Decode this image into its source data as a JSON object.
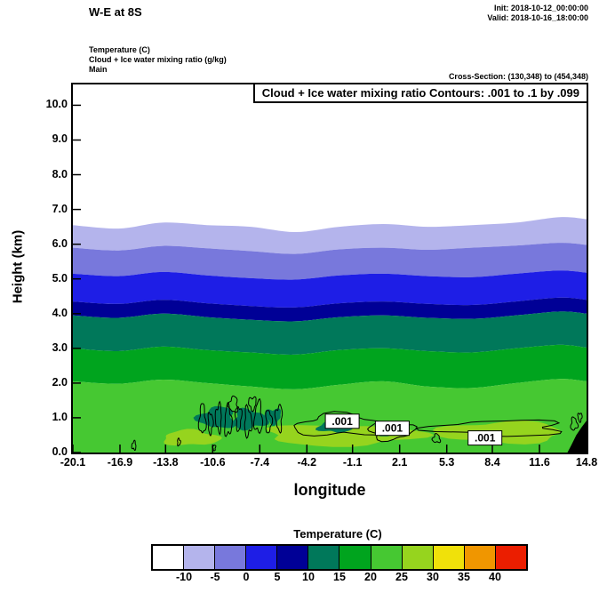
{
  "header": {
    "title": "W-E at 8S",
    "init": "Init: 2018-10-12_00:00:00",
    "valid": "Valid: 2018-10-16_18:00:00",
    "fields": [
      "Temperature (C)",
      "Cloud + Ice water mixing ratio (g/kg)",
      "Main"
    ],
    "cross_section": "Cross-Section: (130,348) to (454,348)"
  },
  "plot": {
    "contour_note": "Cloud + Ice water mixing ratio Contours: .001 to .1 by .099",
    "xlabel": "longitude",
    "ylabel": "Height (km)"
  },
  "colorbar": {
    "title": "Temperature (C)",
    "colors": [
      "#ffffff",
      "#b4b4ec",
      "#7878dc",
      "#1e1ee6",
      "#000096",
      "#00785a",
      "#00a41e",
      "#46c832",
      "#96d41e",
      "#f0e10a",
      "#f09600",
      "#eb1e00"
    ],
    "labels": [
      "-10",
      "-5",
      "0",
      "5",
      "10",
      "15",
      "20",
      "25",
      "30",
      "35",
      "40"
    ]
  },
  "chart_data": {
    "type": "filled-contour-cross-section",
    "title": "W-E at 8S",
    "fill_field": "Temperature (C)",
    "line_field": "Cloud + Ice water mixing ratio (g/kg)",
    "line_contour_levels_gkg": [
      0.001,
      0.1
    ],
    "xlabel": "longitude",
    "ylabel": "Height (km)",
    "xlim": [
      -20.1,
      14.8
    ],
    "ylim": [
      0,
      10.6
    ],
    "x_ticks": [
      "-20.1",
      "-16.9",
      "-13.8",
      "-10.6",
      "-7.4",
      "-4.2",
      "-1.1",
      "2.1",
      "5.3",
      "8.4",
      "11.6",
      "14.8"
    ],
    "y_ticks": [
      "0.0",
      "1.0",
      "2.0",
      "3.0",
      "4.0",
      "5.0",
      "6.0",
      "7.0",
      "8.0",
      "9.0",
      "10.0"
    ],
    "x_samples": [
      -20.1,
      -17,
      -14,
      -11,
      -8,
      -5,
      -2,
      1,
      4,
      7,
      10,
      13,
      14.8
    ],
    "temp_boundaries": [
      {
        "level_c": -10,
        "heights_km": [
          6.55,
          6.45,
          6.62,
          6.55,
          6.5,
          6.35,
          6.5,
          6.58,
          6.5,
          6.55,
          6.62,
          6.78,
          6.72
        ]
      },
      {
        "level_c": -5,
        "heights_km": [
          5.9,
          5.82,
          5.95,
          5.88,
          5.8,
          5.72,
          5.85,
          5.9,
          5.84,
          5.9,
          5.96,
          6.04,
          5.98
        ]
      },
      {
        "level_c": 0,
        "heights_km": [
          5.15,
          5.08,
          5.2,
          5.1,
          5.02,
          4.98,
          5.1,
          5.15,
          5.08,
          5.05,
          5.15,
          5.24,
          5.18
        ]
      },
      {
        "level_c": 5,
        "heights_km": [
          4.35,
          4.28,
          4.4,
          4.3,
          4.22,
          4.18,
          4.3,
          4.35,
          4.28,
          4.25,
          4.35,
          4.46,
          4.4
        ]
      },
      {
        "level_c": 10,
        "heights_km": [
          3.95,
          3.88,
          4.0,
          3.9,
          3.82,
          3.78,
          3.9,
          3.95,
          3.88,
          3.85,
          3.95,
          4.06,
          4.0
        ]
      },
      {
        "level_c": 15,
        "heights_km": [
          3.0,
          2.92,
          3.05,
          2.95,
          2.88,
          2.82,
          2.95,
          3.0,
          2.92,
          2.88,
          3.0,
          3.1,
          3.02
        ]
      },
      {
        "level_c": 20,
        "heights_km": [
          2.05,
          1.98,
          2.1,
          2.0,
          1.9,
          1.82,
          1.95,
          2.05,
          1.9,
          1.86,
          2.0,
          2.12,
          2.05
        ]
      }
    ],
    "band_fills": [
      "#b4b4ec",
      "#7878dc",
      "#1e1ee6",
      "#000096",
      "#00785a",
      "#00a41e",
      "#46c832"
    ],
    "warm_patch_color": "#96d41e",
    "warm_patches": [
      [
        -1.8,
        0.5,
        5.3,
        0.3
      ],
      [
        9.0,
        0.58,
        4.3,
        0.3
      ],
      [
        -12.1,
        0.42,
        1.9,
        0.22
      ]
    ],
    "cool_blob_color": "#00785a",
    "cool_blobs": [
      [
        -10.3,
        1.0,
        1.25,
        0.3
      ],
      [
        -8.1,
        0.95,
        1.15,
        0.28
      ],
      [
        -6.5,
        1.05,
        0.55,
        0.22
      ],
      [
        -2.3,
        0.75,
        1.1,
        0.18
      ],
      [
        1.2,
        0.62,
        0.7,
        0.15
      ]
    ],
    "cloud_contours": {
      "range_note": ".001 to .1 by .099",
      "loops": [
        [
          -11.3,
          0.95,
          0.22,
          0.42
        ],
        [
          -10.75,
          0.85,
          0.16,
          0.3
        ],
        [
          -10.2,
          1.0,
          0.2,
          0.38
        ],
        [
          -9.55,
          0.9,
          0.24,
          0.42
        ],
        [
          -8.85,
          1.0,
          0.2,
          0.34
        ],
        [
          -9.2,
          1.38,
          0.3,
          0.22
        ],
        [
          -8.2,
          0.88,
          0.24,
          0.4
        ],
        [
          -7.9,
          1.42,
          0.25,
          0.18
        ],
        [
          -7.5,
          1.0,
          0.26,
          0.44
        ],
        [
          -6.8,
          0.9,
          0.2,
          0.32
        ],
        [
          -6.1,
          1.0,
          0.22,
          0.36
        ],
        [
          -1.9,
          0.78,
          3.1,
          0.3
        ],
        [
          1.5,
          0.62,
          1.5,
          0.24
        ],
        [
          8.9,
          0.7,
          4.3,
          0.22
        ],
        [
          13.95,
          0.82,
          0.22,
          0.18
        ],
        [
          14.35,
          1.02,
          0.14,
          0.12
        ],
        [
          -15.95,
          0.2,
          0.14,
          0.12
        ],
        [
          -12.9,
          0.3,
          0.1,
          0.1
        ],
        [
          -10.5,
          0.14,
          0.1,
          0.08
        ],
        [
          4.6,
          0.4,
          0.25,
          0.12
        ]
      ],
      "labels": [
        {
          "lon": -1.8,
          "km": 0.9,
          "text": ".001"
        },
        {
          "lon": 1.6,
          "km": 0.7,
          "text": ".001"
        },
        {
          "lon": 7.9,
          "km": 0.42,
          "text": ".001"
        }
      ]
    },
    "terrain": [
      [
        [
          13.5,
          0
        ],
        [
          13.75,
          0.2
        ],
        [
          14.1,
          0.5
        ],
        [
          14.45,
          0.72
        ],
        [
          14.8,
          0.92
        ],
        [
          14.8,
          0
        ]
      ]
    ]
  }
}
